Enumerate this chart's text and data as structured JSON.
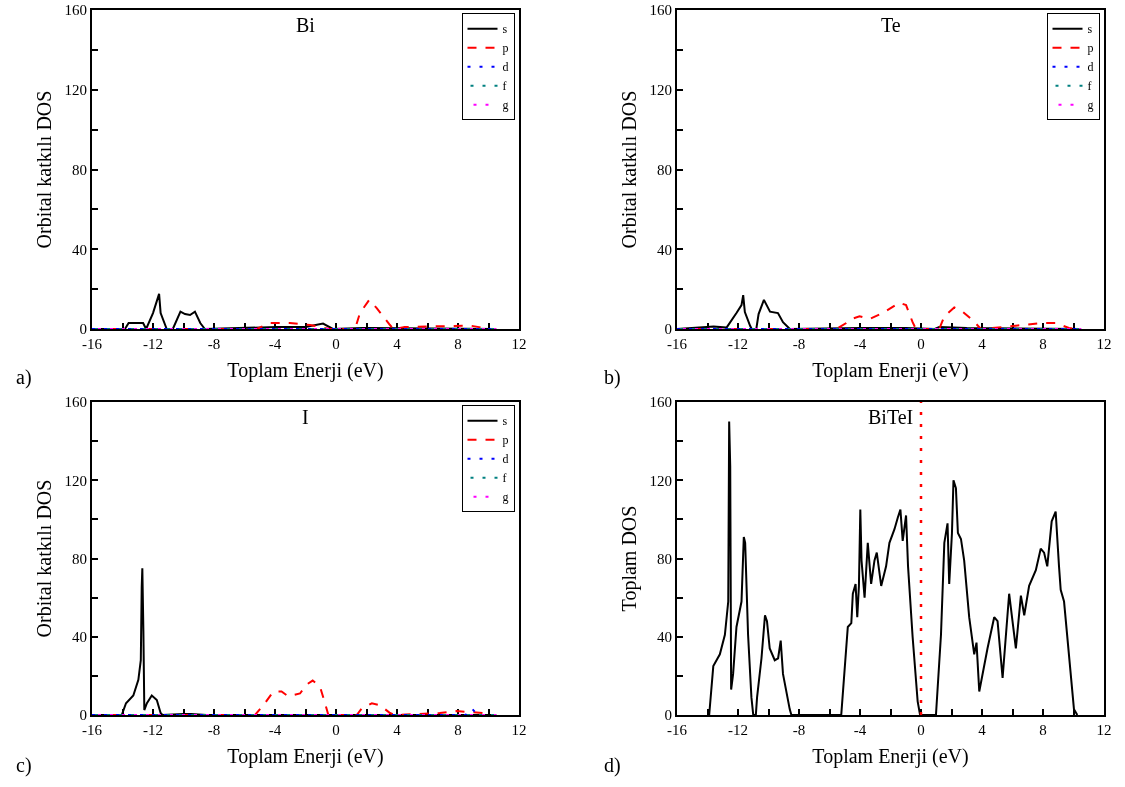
{
  "chart_data": [
    {
      "type": "line",
      "title": "Bi",
      "xlabel": "Toplam Enerji (eV)",
      "ylabel": "Orbital katkılı DOS",
      "annotations": [
        "a)"
      ],
      "legend": "top right",
      "xlim": [
        -16,
        12
      ],
      "ylim": [
        0,
        160
      ],
      "xticks": [
        -16,
        {
          "value": -14,
          "label": null
        },
        -12,
        {
          "value": -10,
          "label": null
        },
        -8,
        {
          "value": -6,
          "label": null
        },
        -4,
        {
          "value": -2,
          "label": null
        },
        0,
        {
          "value": 2,
          "label": null
        },
        4,
        {
          "value": 6,
          "label": null
        },
        8,
        {
          "value": 10,
          "label": null
        },
        12
      ],
      "yticks": [
        0,
        {
          "value": 20,
          "label": null
        },
        40,
        {
          "value": 60,
          "label": null
        },
        80,
        {
          "value": 100,
          "label": null
        },
        120,
        {
          "value": 140,
          "label": null
        },
        160
      ],
      "series": [
        {
          "name": "s",
          "color": "#000000",
          "line_style": "solid",
          "x": [
            -16,
            -13.84,
            -13.6,
            -12.65,
            -12.45,
            -12.0,
            -11.6,
            -11.5,
            -11.1,
            -10.7,
            -10.2,
            -9.9,
            -9.57,
            -9.25,
            -8.9,
            -8.6,
            -3.9,
            -2.0,
            -0.85,
            -0.2,
            1.7,
            2.3,
            10.5
          ],
          "values": [
            0,
            0,
            3,
            3,
            0,
            8,
            17.6,
            8,
            0,
            0,
            8.7,
            7.5,
            7,
            8.7,
            3,
            0,
            1,
            1,
            2.7,
            0,
            0.5,
            0.5,
            0
          ]
        },
        {
          "name": "p",
          "color": "#ff0000",
          "line_style": "dashed",
          "x": [
            -16,
            -5.2,
            -4.33,
            -3.02,
            -1.7,
            -0.4,
            1.25,
            1.57,
            2.18,
            2.67,
            3.54,
            3.76,
            4.5,
            8.8,
            10.1,
            10.5
          ],
          "values": [
            0,
            0,
            3,
            3,
            2,
            0,
            0,
            8,
            14.6,
            10.5,
            2,
            0,
            1,
            1.7,
            0,
            0
          ]
        },
        {
          "name": "d",
          "color": "#0000ff",
          "line_style": "dotted",
          "x": [
            -16,
            10.5
          ],
          "values": [
            0,
            0
          ]
        },
        {
          "name": "f",
          "color": "#008080",
          "line_style": "dashdot",
          "x": [
            -16,
            10.5
          ],
          "values": [
            0,
            0
          ]
        },
        {
          "name": "g",
          "color": "#ff00ff",
          "line_style": "dashdotdot",
          "x": [
            -16,
            10.5
          ],
          "values": [
            0,
            0
          ]
        }
      ]
    },
    {
      "type": "line",
      "title": "Te",
      "xlabel": "Toplam Enerji (eV)",
      "ylabel": "Orbital katkılı DOS",
      "annotations": [
        "b)"
      ],
      "legend": "top right",
      "xlim": [
        -16,
        12
      ],
      "ylim": [
        0,
        160
      ],
      "xticks": [
        -16,
        {
          "value": -14,
          "label": null
        },
        -12,
        {
          "value": -10,
          "label": null
        },
        -8,
        {
          "value": -6,
          "label": null
        },
        -4,
        {
          "value": -2,
          "label": null
        },
        0,
        {
          "value": 2,
          "label": null
        },
        4,
        {
          "value": 6,
          "label": null
        },
        8,
        {
          "value": 10,
          "label": null
        },
        12
      ],
      "yticks": [
        0,
        {
          "value": 20,
          "label": null
        },
        40,
        {
          "value": 60,
          "label": null
        },
        80,
        {
          "value": 100,
          "label": null
        },
        120,
        {
          "value": 140,
          "label": null
        },
        160
      ],
      "series": [
        {
          "name": "s",
          "color": "#000000",
          "line_style": "solid",
          "x": [
            -16,
            -14.06,
            -13.6,
            -12.75,
            -12.1,
            -11.77,
            -11.66,
            -11.55,
            -11.2,
            -11.1,
            -10.8,
            -10.65,
            -10.3,
            -9.9,
            -9.38,
            -9.05,
            -8.6,
            -4.0,
            -1.0,
            0.9,
            1.2,
            3.0,
            10.5
          ],
          "values": [
            0,
            1,
            1.2,
            0.7,
            8,
            12,
            17,
            8.5,
            1.5,
            0,
            0,
            7.5,
            14.6,
            8.7,
            8,
            3.4,
            0,
            0.5,
            0.5,
            0,
            1,
            0.5,
            0
          ]
        },
        {
          "name": "p",
          "color": "#ff0000",
          "line_style": "dashed",
          "x": [
            -16,
            -5.55,
            -4.9,
            -4.57,
            -4.03,
            -3.38,
            -2.5,
            -1.42,
            -0.98,
            -0.55,
            -0.33,
            1.2,
            1.53,
            2.18,
            2.73,
            3.38,
            3.93,
            5.35,
            7.96,
            8.83,
            9.7,
            10.1,
            10.5
          ],
          "values": [
            0,
            0,
            3,
            5,
            6.4,
            5,
            8,
            13.2,
            12,
            3.4,
            0,
            0,
            6.4,
            10.8,
            8.7,
            4.5,
            0,
            1,
            3,
            3,
            0.5,
            0,
            0
          ]
        },
        {
          "name": "d",
          "color": "#0000ff",
          "line_style": "dotted",
          "x": [
            -16,
            10.5
          ],
          "values": [
            0,
            0
          ]
        },
        {
          "name": "f",
          "color": "#008080",
          "line_style": "dashdot",
          "x": [
            -16,
            10.5
          ],
          "values": [
            0,
            0
          ]
        },
        {
          "name": "g",
          "color": "#ff00ff",
          "line_style": "dashdotdot",
          "x": [
            -16,
            10.5
          ],
          "values": [
            0,
            0
          ]
        }
      ]
    },
    {
      "type": "line",
      "title": "I",
      "xlabel": "Toplam Enerji (eV)",
      "ylabel": "Orbital katkılı DOS",
      "annotations": [
        "c)"
      ],
      "legend": "top right",
      "xlim": [
        -16,
        12
      ],
      "ylim": [
        0,
        160
      ],
      "xticks": [
        -16,
        {
          "value": -14,
          "label": null
        },
        -12,
        {
          "value": -10,
          "label": null
        },
        -8,
        {
          "value": -6,
          "label": null
        },
        -4,
        {
          "value": -2,
          "label": null
        },
        0,
        {
          "value": 2,
          "label": null
        },
        4,
        {
          "value": 6,
          "label": null
        },
        8,
        {
          "value": 10,
          "label": null
        },
        12
      ],
      "yticks": [
        0,
        {
          "value": 20,
          "label": null
        },
        40,
        {
          "value": 60,
          "label": null
        },
        80,
        {
          "value": 100,
          "label": null
        },
        120,
        {
          "value": 140,
          "label": null
        },
        160
      ],
      "series": [
        {
          "name": "s",
          "color": "#000000",
          "line_style": "solid",
          "x": [
            -16,
            -14.05,
            -13.77,
            -13.29,
            -12.96,
            -12.8,
            -12.74,
            -12.7,
            -12.63,
            -12.57,
            -12.4,
            -12.08,
            -11.75,
            -11.5,
            -11.38,
            -10.0,
            -9.5,
            -8.5,
            10.5
          ],
          "values": [
            0,
            0,
            6,
            10,
            18,
            28,
            65.6,
            75,
            43,
            2.5,
            6,
            10,
            7.7,
            1,
            0,
            0.5,
            0.5,
            0,
            0
          ]
        },
        {
          "name": "p",
          "color": "#ff0000",
          "line_style": "dashed",
          "x": [
            -16,
            -5.31,
            -4.66,
            -4.11,
            -3.57,
            -3.13,
            -2.36,
            -1.92,
            -1.53,
            -1.05,
            -0.72,
            -0.5,
            1.36,
            1.69,
            2.35,
            2.89,
            3.54,
            3.87,
            6.8,
            7.9,
            9.6,
            10.1,
            10.5
          ],
          "values": [
            0,
            0,
            6,
            12,
            12,
            9.5,
            11,
            15.6,
            17.6,
            14.5,
            6,
            0,
            0,
            3.4,
            6,
            5,
            1,
            0,
            1,
            2,
            1,
            0,
            0
          ]
        },
        {
          "name": "d",
          "color": "#0000ff",
          "line_style": "dotted",
          "x": [
            -16,
            8.5,
            8.9,
            9.3,
            10.5
          ],
          "values": [
            0,
            0,
            3.4,
            0,
            0
          ]
        },
        {
          "name": "f",
          "color": "#008080",
          "line_style": "dashdot",
          "x": [
            -16,
            10.5
          ],
          "values": [
            0,
            0
          ]
        },
        {
          "name": "g",
          "color": "#ff00ff",
          "line_style": "dashdotdot",
          "x": [
            -16,
            10.5
          ],
          "values": [
            0,
            0
          ]
        }
      ]
    },
    {
      "type": "line",
      "title": "BiTeI",
      "xlabel": "Toplam Enerji (eV)",
      "ylabel": "Toplam DOS",
      "annotations": [
        "d)"
      ],
      "xlim": [
        -16,
        12
      ],
      "ylim": [
        0,
        160
      ],
      "xticks": [
        -16,
        {
          "value": -14,
          "label": null
        },
        -12,
        {
          "value": -10,
          "label": null
        },
        -8,
        {
          "value": -6,
          "label": null
        },
        -4,
        {
          "value": -2,
          "label": null
        },
        0,
        {
          "value": 2,
          "label": null
        },
        4,
        {
          "value": 6,
          "label": null
        },
        8,
        {
          "value": 10,
          "label": null
        },
        12
      ],
      "yticks": [
        0,
        {
          "value": 20,
          "label": null
        },
        40,
        {
          "value": 60,
          "label": null
        },
        80,
        {
          "value": 100,
          "label": null
        },
        120,
        {
          "value": 140,
          "label": null
        },
        160
      ],
      "ref_lines": [
        {
          "axis": "x",
          "value": 0,
          "color": "#ff0000",
          "line_style": "dotted"
        }
      ],
      "series": [
        {
          "color": "#000000",
          "line_style": "solid",
          "x": [
            -13.89,
            -13.62,
            -13.19,
            -12.86,
            -12.64,
            -12.58,
            -12.51,
            -12.45,
            -12.32,
            -12.1,
            -11.77,
            -11.62,
            -11.53,
            -11.34,
            -11.12,
            -11.0,
            -10.83,
            -10.75,
            -10.46,
            -10.23,
            -10.1,
            -9.92,
            -9.59,
            -9.37,
            -9.2,
            -9.05,
            -8.61,
            -8.5,
            -5.23,
            -4.8,
            -4.57,
            -4.47,
            -4.29,
            -4.18,
            -4.07,
            -3.98,
            -3.9,
            -3.7,
            -3.49,
            -3.27,
            -3.05,
            -2.9,
            -2.61,
            -2.29,
            -2.07,
            -1.74,
            -1.52,
            -1.35,
            -1.2,
            -0.98,
            -0.85,
            -0.55,
            -0.22,
            -0.06,
            0.98,
            1.31,
            1.53,
            1.74,
            1.85,
            2.03,
            2.13,
            2.29,
            2.42,
            2.62,
            2.83,
            3.16,
            3.49,
            3.64,
            3.82,
            4.36,
            4.8,
            5.02,
            5.35,
            5.78,
            6.0,
            6.22,
            6.55,
            6.77,
            7.09,
            7.53,
            7.85,
            8.07,
            8.28,
            8.57,
            8.83,
            9.05,
            9.16,
            9.38,
            10.03,
            10.25
          ],
          "values": [
            0,
            25,
            31,
            41,
            58,
            150,
            127,
            13,
            21,
            45,
            58,
            91,
            88,
            41,
            9,
            0,
            0,
            9,
            29,
            51,
            48,
            34,
            28,
            29,
            38,
            21,
            3,
            0,
            0,
            45,
            47,
            62,
            67,
            50,
            66,
            105,
            79,
            60,
            88,
            67,
            79,
            83,
            66,
            76,
            88,
            95,
            101,
            105,
            89,
            102,
            76,
            40,
            7,
            0,
            0,
            41,
            88,
            98,
            67,
            93,
            120,
            116,
            93,
            90,
            79,
            50,
            31,
            37,
            12,
            34,
            50,
            48,
            19,
            62,
            48,
            34,
            61,
            51,
            66,
            74,
            85,
            83,
            76,
            99,
            104,
            76,
            64,
            58,
            3,
            0
          ]
        }
      ]
    }
  ]
}
